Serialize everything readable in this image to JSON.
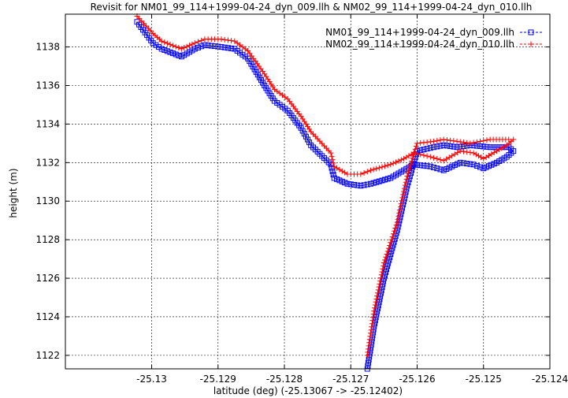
{
  "chart_data": {
    "type": "line",
    "title": "Revisit for NM01_99_114+1999-04-24_dyn_009.llh & NM02_99_114+1999-04-24_dyn_010.llh",
    "xlabel": "latitude (deg) (-25.13067 -> -25.12402)",
    "ylabel": "height (m)",
    "xlim": [
      -25.1313,
      -25.124
    ],
    "ylim": [
      1121.3,
      1139.7
    ],
    "x_ticks": [
      -25.13,
      -25.129,
      -25.128,
      -25.127,
      -25.126,
      -25.125,
      -25.124
    ],
    "x_tick_labels": [
      "-25.13",
      "-25.129",
      "-25.128",
      "-25.127",
      "-25.126",
      "-25.125",
      "-25.124"
    ],
    "y_ticks": [
      1122,
      1124,
      1126,
      1128,
      1130,
      1132,
      1134,
      1136,
      1138
    ],
    "y_tick_labels": [
      "1122",
      "1124",
      "1126",
      "1128",
      "1130",
      "1132",
      "1134",
      "1136",
      "1138"
    ],
    "grid": true,
    "legend_position": "top-right",
    "series": [
      {
        "name": "NM01_99_114+1999-04-24_dyn_009.llh",
        "color": "#0000ff",
        "marker": "square",
        "x": [
          -25.13022,
          -25.12998,
          -25.12985,
          -25.12955,
          -25.12935,
          -25.1292,
          -25.12895,
          -25.12875,
          -25.12855,
          -25.1283,
          -25.12815,
          -25.12795,
          -25.12775,
          -25.1276,
          -25.1273,
          -25.12725,
          -25.12705,
          -25.12685,
          -25.1267,
          -25.1264,
          -25.1262,
          -25.12605,
          -25.1258,
          -25.1256,
          -25.12535,
          -25.12515,
          -25.125,
          -25.1248,
          -25.12465,
          -25.12455,
          -25.12462,
          -25.1249,
          -25.1252,
          -25.1254,
          -25.1256,
          -25.12575,
          -25.126,
          -25.12615,
          -25.1263,
          -25.1265,
          -25.12665,
          -25.12675
        ],
        "y": [
          1139.3,
          1138.2,
          1137.9,
          1137.5,
          1137.9,
          1138.1,
          1138.0,
          1137.9,
          1137.4,
          1136.0,
          1135.2,
          1134.7,
          1133.8,
          1132.9,
          1131.9,
          1131.2,
          1130.9,
          1130.8,
          1130.9,
          1131.2,
          1131.6,
          1131.9,
          1131.8,
          1131.6,
          1132.0,
          1131.9,
          1131.7,
          1132.0,
          1132.3,
          1132.6,
          1132.8,
          1132.8,
          1132.9,
          1132.8,
          1132.9,
          1132.8,
          1132.6,
          1130.8,
          1128.5,
          1126.0,
          1123.5,
          1121.3
        ]
      },
      {
        "name": "NM02_99_114+1999-04-24_dyn_010.llh",
        "color": "#ff0000",
        "marker": "plus",
        "x": [
          -25.13022,
          -25.12998,
          -25.12985,
          -25.12955,
          -25.12935,
          -25.1292,
          -25.12895,
          -25.12875,
          -25.12855,
          -25.1283,
          -25.12815,
          -25.12795,
          -25.12775,
          -25.1276,
          -25.1273,
          -25.12725,
          -25.12705,
          -25.12685,
          -25.1267,
          -25.1264,
          -25.1262,
          -25.12605,
          -25.1258,
          -25.1256,
          -25.12535,
          -25.12515,
          -25.125,
          -25.1248,
          -25.12465,
          -25.12455,
          -25.12462,
          -25.1249,
          -25.1252,
          -25.1254,
          -25.1256,
          -25.12575,
          -25.126,
          -25.12615,
          -25.1263,
          -25.1265,
          -25.12665,
          -25.12675
        ],
        "y": [
          1139.6,
          1138.7,
          1138.3,
          1137.9,
          1138.2,
          1138.4,
          1138.4,
          1138.3,
          1137.8,
          1136.6,
          1135.8,
          1135.3,
          1134.4,
          1133.6,
          1132.5,
          1131.8,
          1131.4,
          1131.4,
          1131.6,
          1131.9,
          1132.2,
          1132.5,
          1132.3,
          1132.1,
          1132.6,
          1132.5,
          1132.2,
          1132.6,
          1132.9,
          1133.2,
          1133.2,
          1133.2,
          1133.0,
          1133.1,
          1133.2,
          1133.1,
          1133.0,
          1131.3,
          1128.9,
          1126.8,
          1124.3,
          1122.0
        ]
      }
    ]
  }
}
